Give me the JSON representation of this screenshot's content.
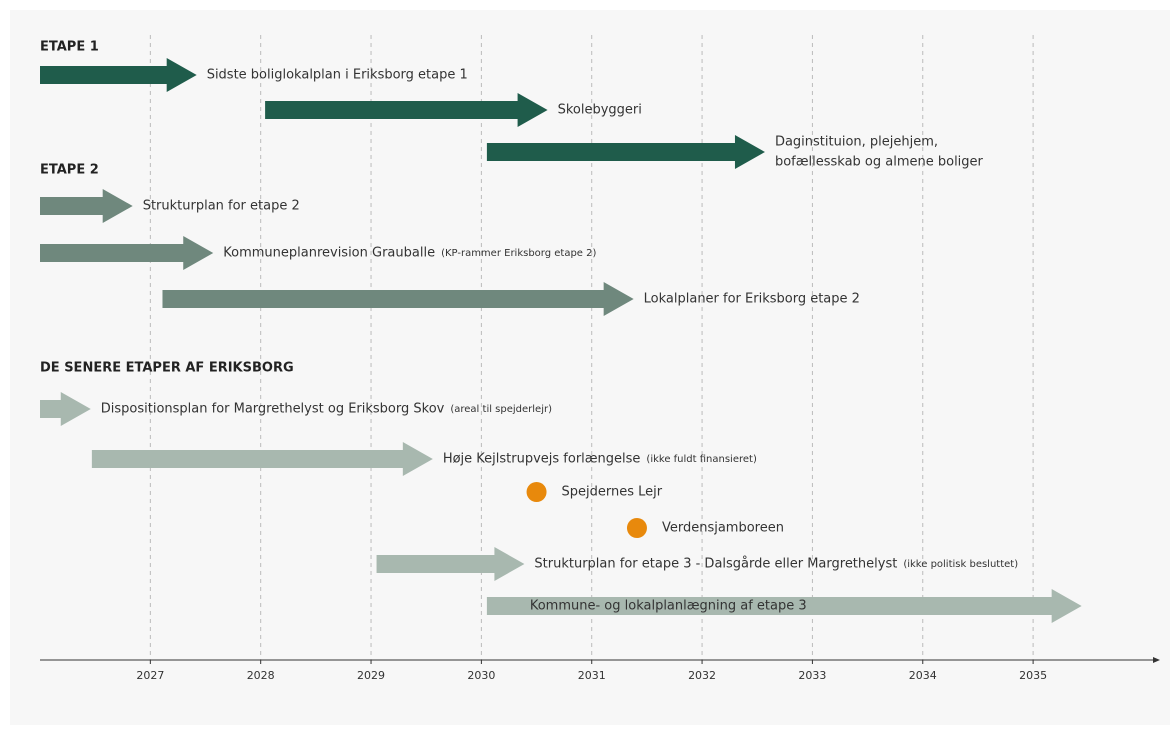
{
  "chart_data": {
    "type": "timeline",
    "xlim": [
      2026,
      2036.15
    ],
    "xticks": [
      2027,
      2028,
      2029,
      2030,
      2031,
      2032,
      2033,
      2034,
      2035
    ],
    "grid": true,
    "sections": [
      {
        "title": "ETAPE 1",
        "color": "#1f5c4b",
        "items": [
          {
            "label": [
              "Sidste boliglokalplan i Eriksborg etape 1"
            ],
            "start": 2026,
            "end": 2027.42
          },
          {
            "label": [
              "Skolebyggeri"
            ],
            "start": 2028.04,
            "end": 2030.6
          },
          {
            "label": [
              "Daginstituion, plejehjem,",
              "bofællesskab og almene boliger"
            ],
            "start": 2030.05,
            "end": 2032.57
          }
        ]
      },
      {
        "title": "ETAPE 2",
        "color": "#6f887d",
        "items": [
          {
            "label": [
              "Strukturplan for etape 2"
            ],
            "start": 2026,
            "end": 2026.84
          },
          {
            "label": [
              "Kommuneplanrevision Grauballe"
            ],
            "note": "(KP-rammer Eriksborg etape 2)",
            "start": 2026,
            "end": 2027.57
          },
          {
            "label": [
              "Lokalplaner for Eriksborg etape 2"
            ],
            "start": 2027.11,
            "end": 2031.38
          }
        ]
      },
      {
        "title": "DE SENERE ETAPER AF ERIKSBORG",
        "color": "#a8b8af",
        "items": [
          {
            "label": [
              "Dispositionsplan for Margrethelyst og Eriksborg Skov"
            ],
            "note": "(areal til spejderlejr)",
            "start": 2026,
            "end": 2026.46
          },
          {
            "label": [
              "Høje Kejlstrupvejs forlængelse"
            ],
            "note": "(ikke fuldt finansieret)",
            "start": 2026.47,
            "end": 2029.56
          },
          {
            "label": [
              "Spejdernes Lejr"
            ],
            "at": 2030.5,
            "color": "#e8890c"
          },
          {
            "label": [
              "Verdensjamboreen"
            ],
            "at": 2031.41,
            "color": "#e8890c"
          },
          {
            "label": [
              "Strukturplan for etape 3 - Dalsgårde eller Margrethelyst"
            ],
            "note": "(ikke politisk besluttet)",
            "start": 2029.05,
            "end": 2030.39
          },
          {
            "label": [
              "Kommune- og lokalplanlægning af etape 3"
            ],
            "start": 2030.05,
            "end": 2035.44
          }
        ]
      }
    ]
  }
}
